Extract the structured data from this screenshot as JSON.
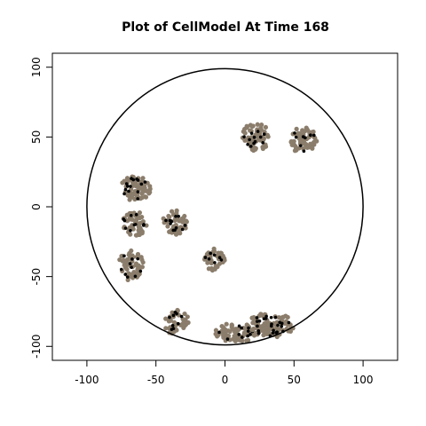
{
  "chart_data": {
    "type": "scatter",
    "title": "Plot of CellModel At Time 168",
    "xlabel": "",
    "ylabel": "",
    "xlim": [
      -125,
      125
    ],
    "ylim": [
      -110,
      110
    ],
    "x_ticks": [
      -100,
      -50,
      0,
      50,
      100
    ],
    "y_ticks": [
      -100,
      -50,
      0,
      50,
      100
    ],
    "grid": false,
    "boundary_circle": {
      "cx": 0,
      "cy": 0,
      "r": 100
    },
    "colors": {
      "cells": "#8b7d6b",
      "active_cells": "#000000",
      "circle": "#000000"
    },
    "clusters": [
      {
        "cx": 22,
        "cy": 50,
        "rx": 10,
        "ry": 11,
        "n": 60,
        "active": 12
      },
      {
        "cx": 57,
        "cy": 48,
        "rx": 10,
        "ry": 10,
        "n": 55,
        "active": 8
      },
      {
        "cx": -65,
        "cy": 13,
        "rx": 11,
        "ry": 9,
        "n": 65,
        "active": 14
      },
      {
        "cx": -66,
        "cy": -12,
        "rx": 10,
        "ry": 9,
        "n": 55,
        "active": 10
      },
      {
        "cx": -36,
        "cy": -11,
        "rx": 9,
        "ry": 9,
        "n": 50,
        "active": 12
      },
      {
        "cx": -68,
        "cy": -42,
        "rx": 9,
        "ry": 11,
        "n": 55,
        "active": 10
      },
      {
        "cx": -8,
        "cy": -38,
        "rx": 8,
        "ry": 8,
        "n": 40,
        "active": 7
      },
      {
        "cx": -35,
        "cy": -83,
        "rx": 9,
        "ry": 9,
        "n": 45,
        "active": 9
      },
      {
        "cx": 8,
        "cy": -90,
        "rx": 15,
        "ry": 7,
        "n": 70,
        "active": 12
      },
      {
        "cx": 33,
        "cy": -85,
        "rx": 17,
        "ry": 9,
        "n": 85,
        "active": 24
      }
    ]
  }
}
